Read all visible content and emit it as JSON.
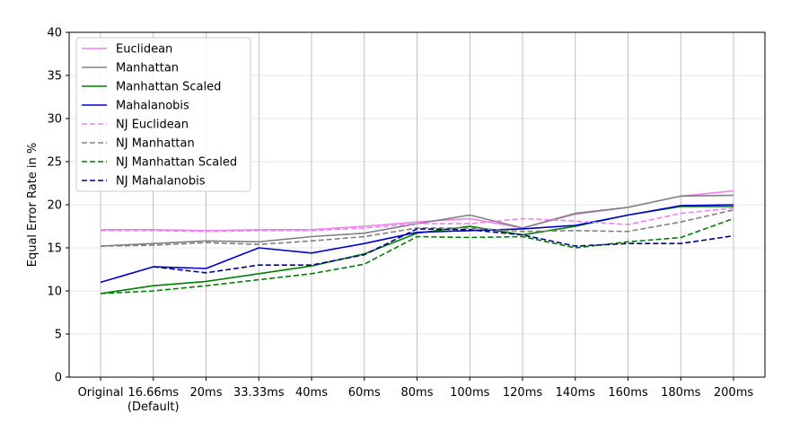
{
  "chart_data": {
    "type": "line",
    "title": "",
    "xlabel": "",
    "ylabel": "Equal Error Rate in %",
    "ylim": [
      0,
      40
    ],
    "yticks": [
      0,
      5,
      10,
      15,
      20,
      25,
      30,
      35,
      40
    ],
    "grid": true,
    "legend_position": "top-left",
    "categories": [
      "Original",
      "16.66ms",
      "20ms",
      "33.33ms",
      "40ms",
      "60ms",
      "80ms",
      "100ms",
      "120ms",
      "140ms",
      "160ms",
      "180ms",
      "200ms"
    ],
    "category_sublabels": [
      "",
      "(Default)",
      "",
      "",
      "",
      "",
      "",
      "",
      "",
      "",
      "",
      "",
      ""
    ],
    "series": [
      {
        "name": "Euclidean",
        "color": "#ee82ee",
        "style": "solid",
        "values": [
          17.1,
          17.1,
          17.0,
          17.1,
          17.1,
          17.5,
          18.0,
          18.4,
          17.3,
          18.9,
          19.7,
          21.0,
          21.6
        ]
      },
      {
        "name": "Manhattan",
        "color": "#808080",
        "style": "solid",
        "values": [
          15.2,
          15.5,
          15.8,
          15.7,
          16.3,
          16.7,
          17.8,
          18.8,
          17.3,
          19.0,
          19.7,
          21.0,
          21.1
        ]
      },
      {
        "name": "Manhattan Scaled",
        "color": "#008000",
        "style": "solid",
        "values": [
          9.7,
          10.6,
          11.1,
          12.0,
          12.9,
          14.3,
          16.7,
          17.5,
          16.5,
          17.5,
          18.8,
          19.8,
          19.8
        ]
      },
      {
        "name": "Mahalanobis",
        "color": "#0000cd",
        "style": "solid",
        "values": [
          11.0,
          12.8,
          12.6,
          15.0,
          14.4,
          15.5,
          16.8,
          17.0,
          17.2,
          17.6,
          18.8,
          19.9,
          20.0
        ]
      },
      {
        "name": "NJ Euclidean",
        "color": "#ee82ee",
        "style": "dashed",
        "values": [
          17.0,
          17.0,
          16.9,
          17.0,
          17.0,
          17.3,
          17.8,
          17.8,
          18.4,
          18.1,
          17.7,
          19.0,
          19.6
        ]
      },
      {
        "name": "NJ Manhattan",
        "color": "#808080",
        "style": "dashed",
        "values": [
          15.2,
          15.3,
          15.6,
          15.4,
          15.8,
          16.3,
          17.3,
          17.3,
          16.9,
          17.0,
          16.9,
          18.0,
          19.4
        ]
      },
      {
        "name": "NJ Manhattan Scaled",
        "color": "#008000",
        "style": "dashed",
        "values": [
          9.7,
          10.0,
          10.6,
          11.3,
          12.0,
          13.1,
          16.3,
          16.2,
          16.3,
          15.0,
          15.7,
          16.2,
          18.4
        ]
      },
      {
        "name": "NJ Mahalanobis",
        "color": "#00008b",
        "style": "dashed",
        "values": [
          null,
          12.8,
          12.1,
          13.0,
          13.0,
          14.2,
          17.2,
          17.1,
          16.5,
          15.2,
          15.5,
          15.5,
          16.4
        ]
      }
    ]
  }
}
